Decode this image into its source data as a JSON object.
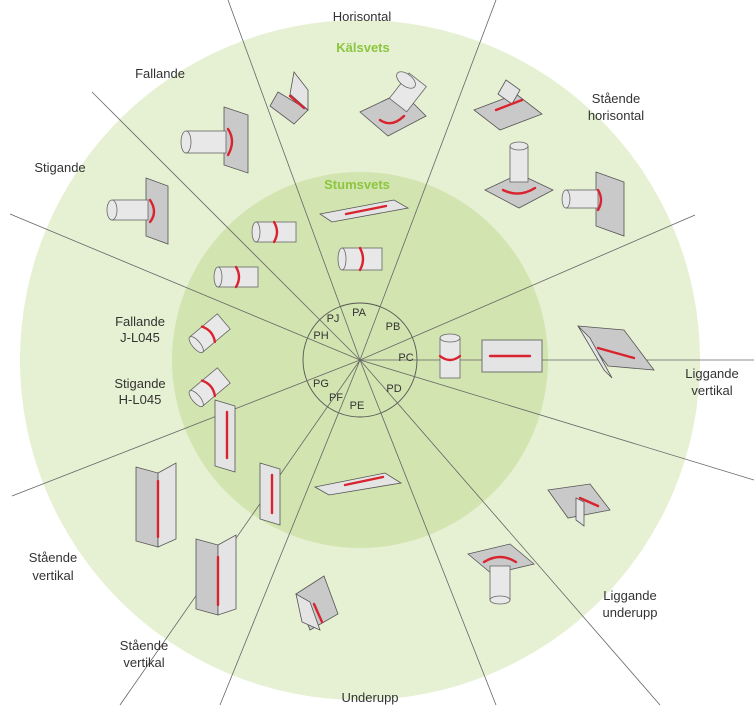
{
  "rings": {
    "outer_title": "Kälsvets",
    "inner_title": "Stumsvets"
  },
  "positions": [
    "PA",
    "PB",
    "PC",
    "PD",
    "PE",
    "PF",
    "PG",
    "PH",
    "PJ"
  ],
  "labels": {
    "horisontal": "Horisontal",
    "fallande": "Fallande",
    "stigande": "Stigande",
    "staende_horisontal_1": "Stående",
    "staende_horisontal_2": "horisontal",
    "liggande_vertikal_1": "Liggande",
    "liggande_vertikal_2": "vertikal",
    "fallande_j_1": "Fallande",
    "fallande_j_2": "J-L045",
    "stigande_h_1": "Stigande",
    "stigande_h_2": "H-L045",
    "staende_vertikal_a_1": "Stående",
    "staende_vertikal_a_2": "vertikal",
    "staende_vertikal_b_1": "Stående",
    "staende_vertikal_b_2": "vertikal",
    "liggande_underupp_1": "Liggande",
    "liggande_underupp_2": "underupp",
    "underupp": "Underupp"
  },
  "colors": {
    "outer_ring": "#e6f0d2",
    "inner_ring": "#d2e4b0",
    "accent": "#8cc63f",
    "weld": "#d9232e"
  }
}
